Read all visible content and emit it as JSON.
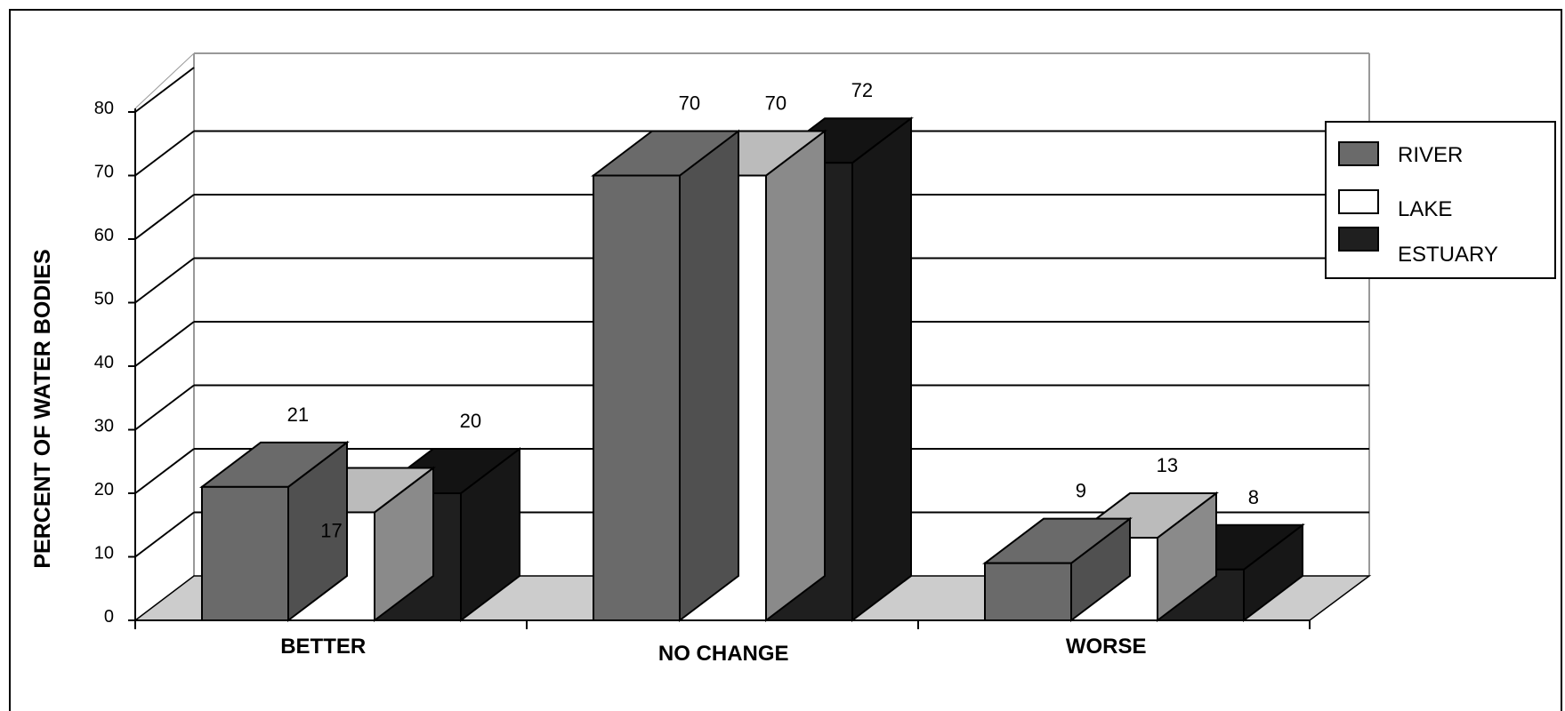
{
  "chart_data": {
    "type": "bar",
    "categories": [
      "BETTER",
      "NO CHANGE",
      "WORSE"
    ],
    "series": [
      {
        "name": "RIVER",
        "values": [
          21,
          70,
          9
        ]
      },
      {
        "name": "LAKE",
        "values": [
          17,
          70,
          13
        ]
      },
      {
        "name": "ESTUARY",
        "values": [
          20,
          72,
          8
        ]
      }
    ],
    "title": "",
    "xlabel": "",
    "ylabel": "PERCENT OF WATER BODIES",
    "ylim": [
      0,
      80
    ],
    "yticks": [
      "0",
      "10",
      "20",
      "30",
      "40",
      "50",
      "60",
      "70",
      "80"
    ],
    "grid": true,
    "legend": "right",
    "style": "3d",
    "colors": {
      "RIVER": "#6a6a6a",
      "LAKE": "#ffffff",
      "ESTUARY": "#1f1f1f",
      "floor": "#cccccc"
    }
  }
}
